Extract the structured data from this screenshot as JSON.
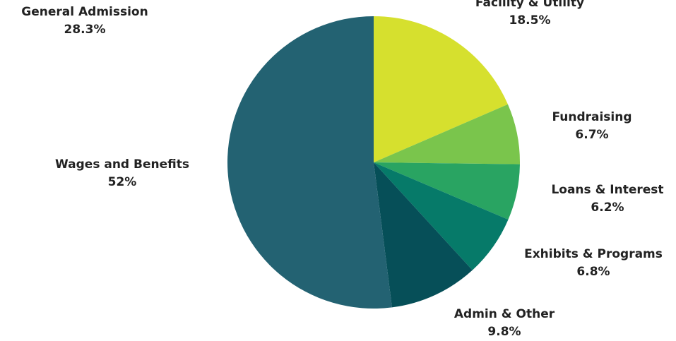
{
  "chart_data": {
    "type": "pie",
    "title": "",
    "slices": [
      {
        "label": "Facility & Utility",
        "value_label": "18.5%",
        "value": 18.5,
        "color": "#d6e02e"
      },
      {
        "label": "Fundraising",
        "value_label": "6.7%",
        "value": 6.7,
        "color": "#7ac54c"
      },
      {
        "label": "Loans & Interest",
        "value_label": "6.2%",
        "value": 6.2,
        "color": "#29a462"
      },
      {
        "label": "Exhibits & Programs",
        "value_label": "6.8%",
        "value": 6.8,
        "color": "#067a69"
      },
      {
        "label": "Admin & Other",
        "value_label": "9.8%",
        "value": 9.8,
        "color": "#064f58"
      },
      {
        "label": "Wages and Benefits",
        "value_label": "52%",
        "value": 52,
        "color": "#236272"
      }
    ],
    "extra_labels": [
      {
        "label": "General Admission",
        "value_label": "28.3%"
      }
    ]
  }
}
